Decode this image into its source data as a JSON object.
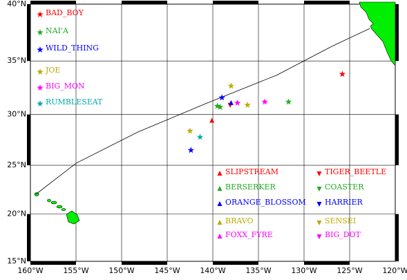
{
  "chart_data": {
    "type": "map",
    "xlim": [
      -160,
      -120
    ],
    "ylim": [
      15,
      40
    ],
    "projection": "mercator",
    "grid": true,
    "xticks": [
      {
        "value": -160,
        "label": "160°W"
      },
      {
        "value": -155,
        "label": "155°W"
      },
      {
        "value": -150,
        "label": "150°W"
      },
      {
        "value": -145,
        "label": "145°W"
      },
      {
        "value": -140,
        "label": "140°W"
      },
      {
        "value": -135,
        "label": "135°W"
      },
      {
        "value": -130,
        "label": "130°W"
      },
      {
        "value": -125,
        "label": "125°W"
      },
      {
        "value": -120,
        "label": "120°W"
      }
    ],
    "yticks": [
      {
        "value": 15,
        "label": "15°N"
      },
      {
        "value": 20,
        "label": "20°N"
      },
      {
        "value": 25,
        "label": "25°N"
      },
      {
        "value": 30,
        "label": "30°N"
      },
      {
        "value": 35,
        "label": "35°N"
      },
      {
        "value": 40,
        "label": "40°N"
      }
    ],
    "track": {
      "color": "#000000",
      "lon": [
        -159.4,
        -155.0,
        -148.2,
        -140.6,
        -133.0,
        -127.0,
        -122.8
      ],
      "lat": [
        22.05,
        25.2,
        28.3,
        31.1,
        33.7,
        36.3,
        37.9
      ]
    },
    "legend": [
      {
        "name": "BAD_BOY",
        "color": "#ff0000",
        "marker": "star"
      },
      {
        "name": "NAI'A",
        "color": "#22aa22",
        "marker": "star"
      },
      {
        "name": "WILD_THING",
        "color": "#0000ff",
        "marker": "star"
      },
      {
        "name": "JOE",
        "color": "#bbaa00",
        "marker": "star"
      },
      {
        "name": "BIG_MON",
        "color": "#ff00ff",
        "marker": "star"
      },
      {
        "name": "RUMBLESEAT",
        "color": "#00aaaa",
        "marker": "star"
      },
      {
        "name": "SLIPSTREAM",
        "color": "#ff0000",
        "marker": "triangle-up"
      },
      {
        "name": "BERSERKER",
        "color": "#22aa22",
        "marker": "triangle-up"
      },
      {
        "name": "ORANGE_BLOSSOM",
        "color": "#0000ff",
        "marker": "triangle-up"
      },
      {
        "name": "BRAVO",
        "color": "#bbaa00",
        "marker": "triangle-up"
      },
      {
        "name": "FOXX_FYRE",
        "color": "#ff00ff",
        "marker": "triangle-up"
      },
      {
        "name": "TIGER_BEETLE",
        "color": "#ff0000",
        "marker": "triangle-down"
      },
      {
        "name": "COASTER",
        "color": "#22aa22",
        "marker": "triangle-down"
      },
      {
        "name": "HARRIER",
        "color": "#0000ff",
        "marker": "triangle-down"
      },
      {
        "name": "SENSEI",
        "color": "#bbaa00",
        "marker": "triangle-down"
      },
      {
        "name": "BIG_DOT",
        "color": "#ff00ff",
        "marker": "triangle-down"
      }
    ],
    "points": [
      {
        "lon": -125.8,
        "lat": 33.8,
        "color": "#ff0000",
        "marker": "star"
      },
      {
        "lon": -138.0,
        "lat": 32.7,
        "color": "#bbaa00",
        "marker": "star"
      },
      {
        "lon": -139.0,
        "lat": 31.6,
        "color": "#0000ff",
        "marker": "star"
      },
      {
        "lon": -131.7,
        "lat": 31.2,
        "color": "#22aa22",
        "marker": "star"
      },
      {
        "lon": -134.3,
        "lat": 31.2,
        "color": "#ff00ff",
        "marker": "star"
      },
      {
        "lon": -137.3,
        "lat": 31.1,
        "color": "#ff00ff",
        "marker": "star"
      },
      {
        "lon": -136.2,
        "lat": 30.9,
        "color": "#bbaa00",
        "marker": "star"
      },
      {
        "lon": -139.5,
        "lat": 30.8,
        "color": "#22aa22",
        "marker": "star"
      },
      {
        "lon": -139.2,
        "lat": 30.7,
        "color": "#22aa22",
        "marker": "star"
      },
      {
        "lon": -138.1,
        "lat": 30.9,
        "color": "#ff0000",
        "marker": "triangle-down"
      },
      {
        "lon": -138.0,
        "lat": 31.1,
        "color": "#0000ff",
        "marker": "triangle-up"
      },
      {
        "lon": -142.5,
        "lat": 28.4,
        "color": "#bbaa00",
        "marker": "star"
      },
      {
        "lon": -141.4,
        "lat": 27.8,
        "color": "#00aaaa",
        "marker": "star"
      },
      {
        "lon": -142.4,
        "lat": 26.5,
        "color": "#0000ff",
        "marker": "star"
      },
      {
        "lon": -140.1,
        "lat": 29.4,
        "color": "#ff0000",
        "marker": "triangle-up"
      }
    ]
  }
}
